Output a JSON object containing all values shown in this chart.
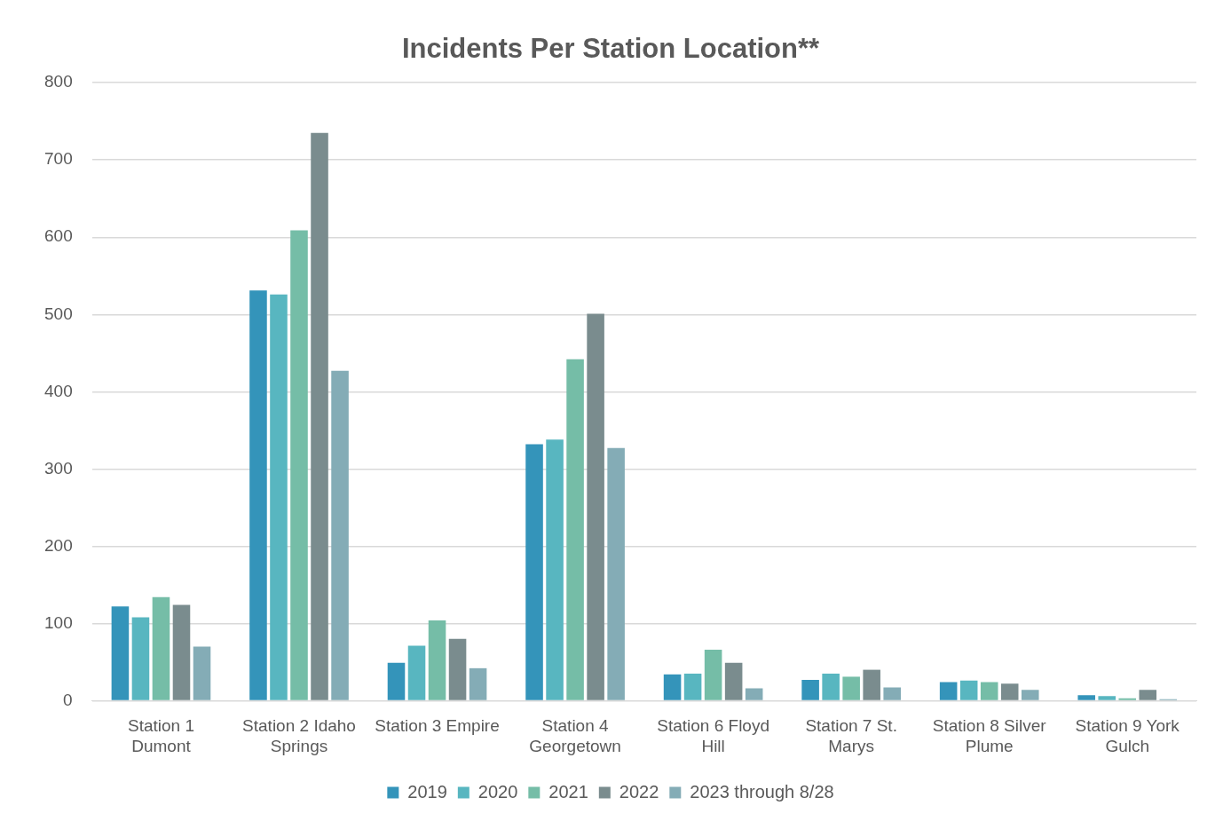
{
  "chart_data": {
    "type": "bar",
    "title": "Incidents Per Station Location**",
    "categories": [
      "Station 1 Dumont",
      "Station 2 Idaho Springs",
      "Station 3 Empire",
      "Station 4 Georgetown",
      "Station 6 Floyd Hill",
      "Station 7 St. Marys",
      "Station 8 Silver Plume",
      "Station 9 York Gulch"
    ],
    "series": [
      {
        "name": "2019",
        "color": "#3494ba",
        "values": [
          122,
          531,
          49,
          332,
          34,
          27,
          24,
          7
        ]
      },
      {
        "name": "2020",
        "color": "#58b6c0",
        "values": [
          108,
          526,
          71,
          338,
          35,
          35,
          26,
          6
        ]
      },
      {
        "name": "2021",
        "color": "#75bda7",
        "values": [
          134,
          609,
          104,
          442,
          66,
          31,
          24,
          3
        ]
      },
      {
        "name": "2022",
        "color": "#7a8c8e",
        "values": [
          124,
          735,
          80,
          501,
          49,
          40,
          22,
          14
        ]
      },
      {
        "name": "2023 through 8/28",
        "color": "#84acb6",
        "values": [
          70,
          427,
          42,
          327,
          16,
          17,
          14,
          2
        ]
      }
    ],
    "ylim": [
      0,
      800
    ],
    "yticks": [
      0,
      100,
      200,
      300,
      400,
      500,
      600,
      700,
      800
    ],
    "grid": "y",
    "legend": "bottom"
  }
}
